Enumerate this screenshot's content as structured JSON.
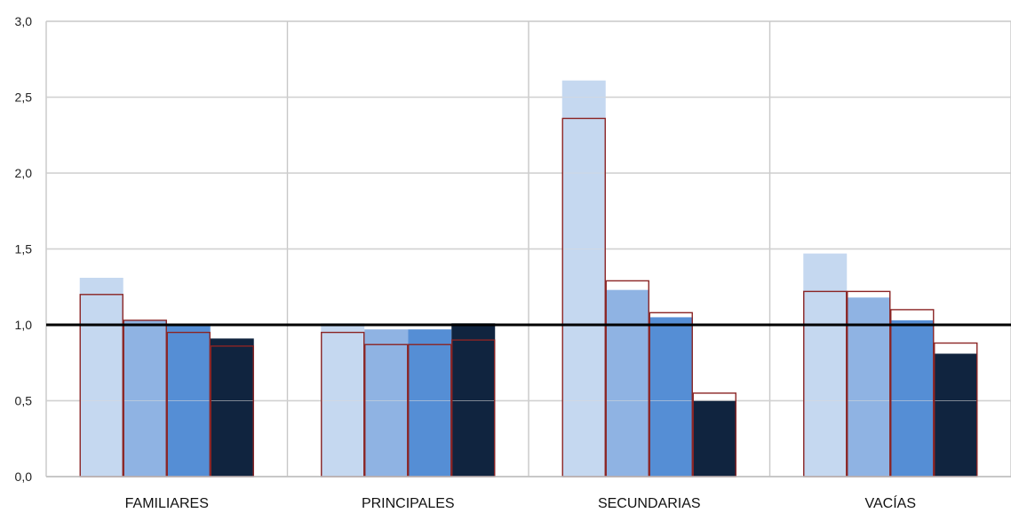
{
  "chart_data": {
    "type": "bar",
    "title": "",
    "xlabel": "",
    "ylabel": "",
    "ylim": [
      0,
      3.0
    ],
    "yticks": [
      "0,0",
      "0,5",
      "1,0",
      "1,5",
      "2,0",
      "2,5",
      "3,0"
    ],
    "grid": true,
    "legend": "none",
    "reference_line": 1.0,
    "categories": [
      "FAMILIARES",
      "PRINCIPALES",
      "SECUNDARIAS",
      "VACÍAS"
    ],
    "series": [
      {
        "color": "#c5d8f0",
        "values": [
          1.31,
          1.01,
          2.61,
          1.47
        ]
      },
      {
        "color": "#8fb3e3",
        "values": [
          1.03,
          0.97,
          1.23,
          1.18
        ]
      },
      {
        "color": "#558ed5",
        "values": [
          1.0,
          0.97,
          1.05,
          1.03
        ]
      },
      {
        "color": "#10243f",
        "values": [
          0.91,
          1.01,
          0.5,
          0.81
        ]
      }
    ],
    "outline_series": {
      "color": "#8b2525",
      "values": [
        [
          1.2,
          1.03,
          0.95,
          0.86
        ],
        [
          0.95,
          0.87,
          0.87,
          0.9
        ],
        [
          2.36,
          1.29,
          1.08,
          0.55
        ],
        [
          1.22,
          1.22,
          1.1,
          0.88
        ]
      ]
    }
  }
}
